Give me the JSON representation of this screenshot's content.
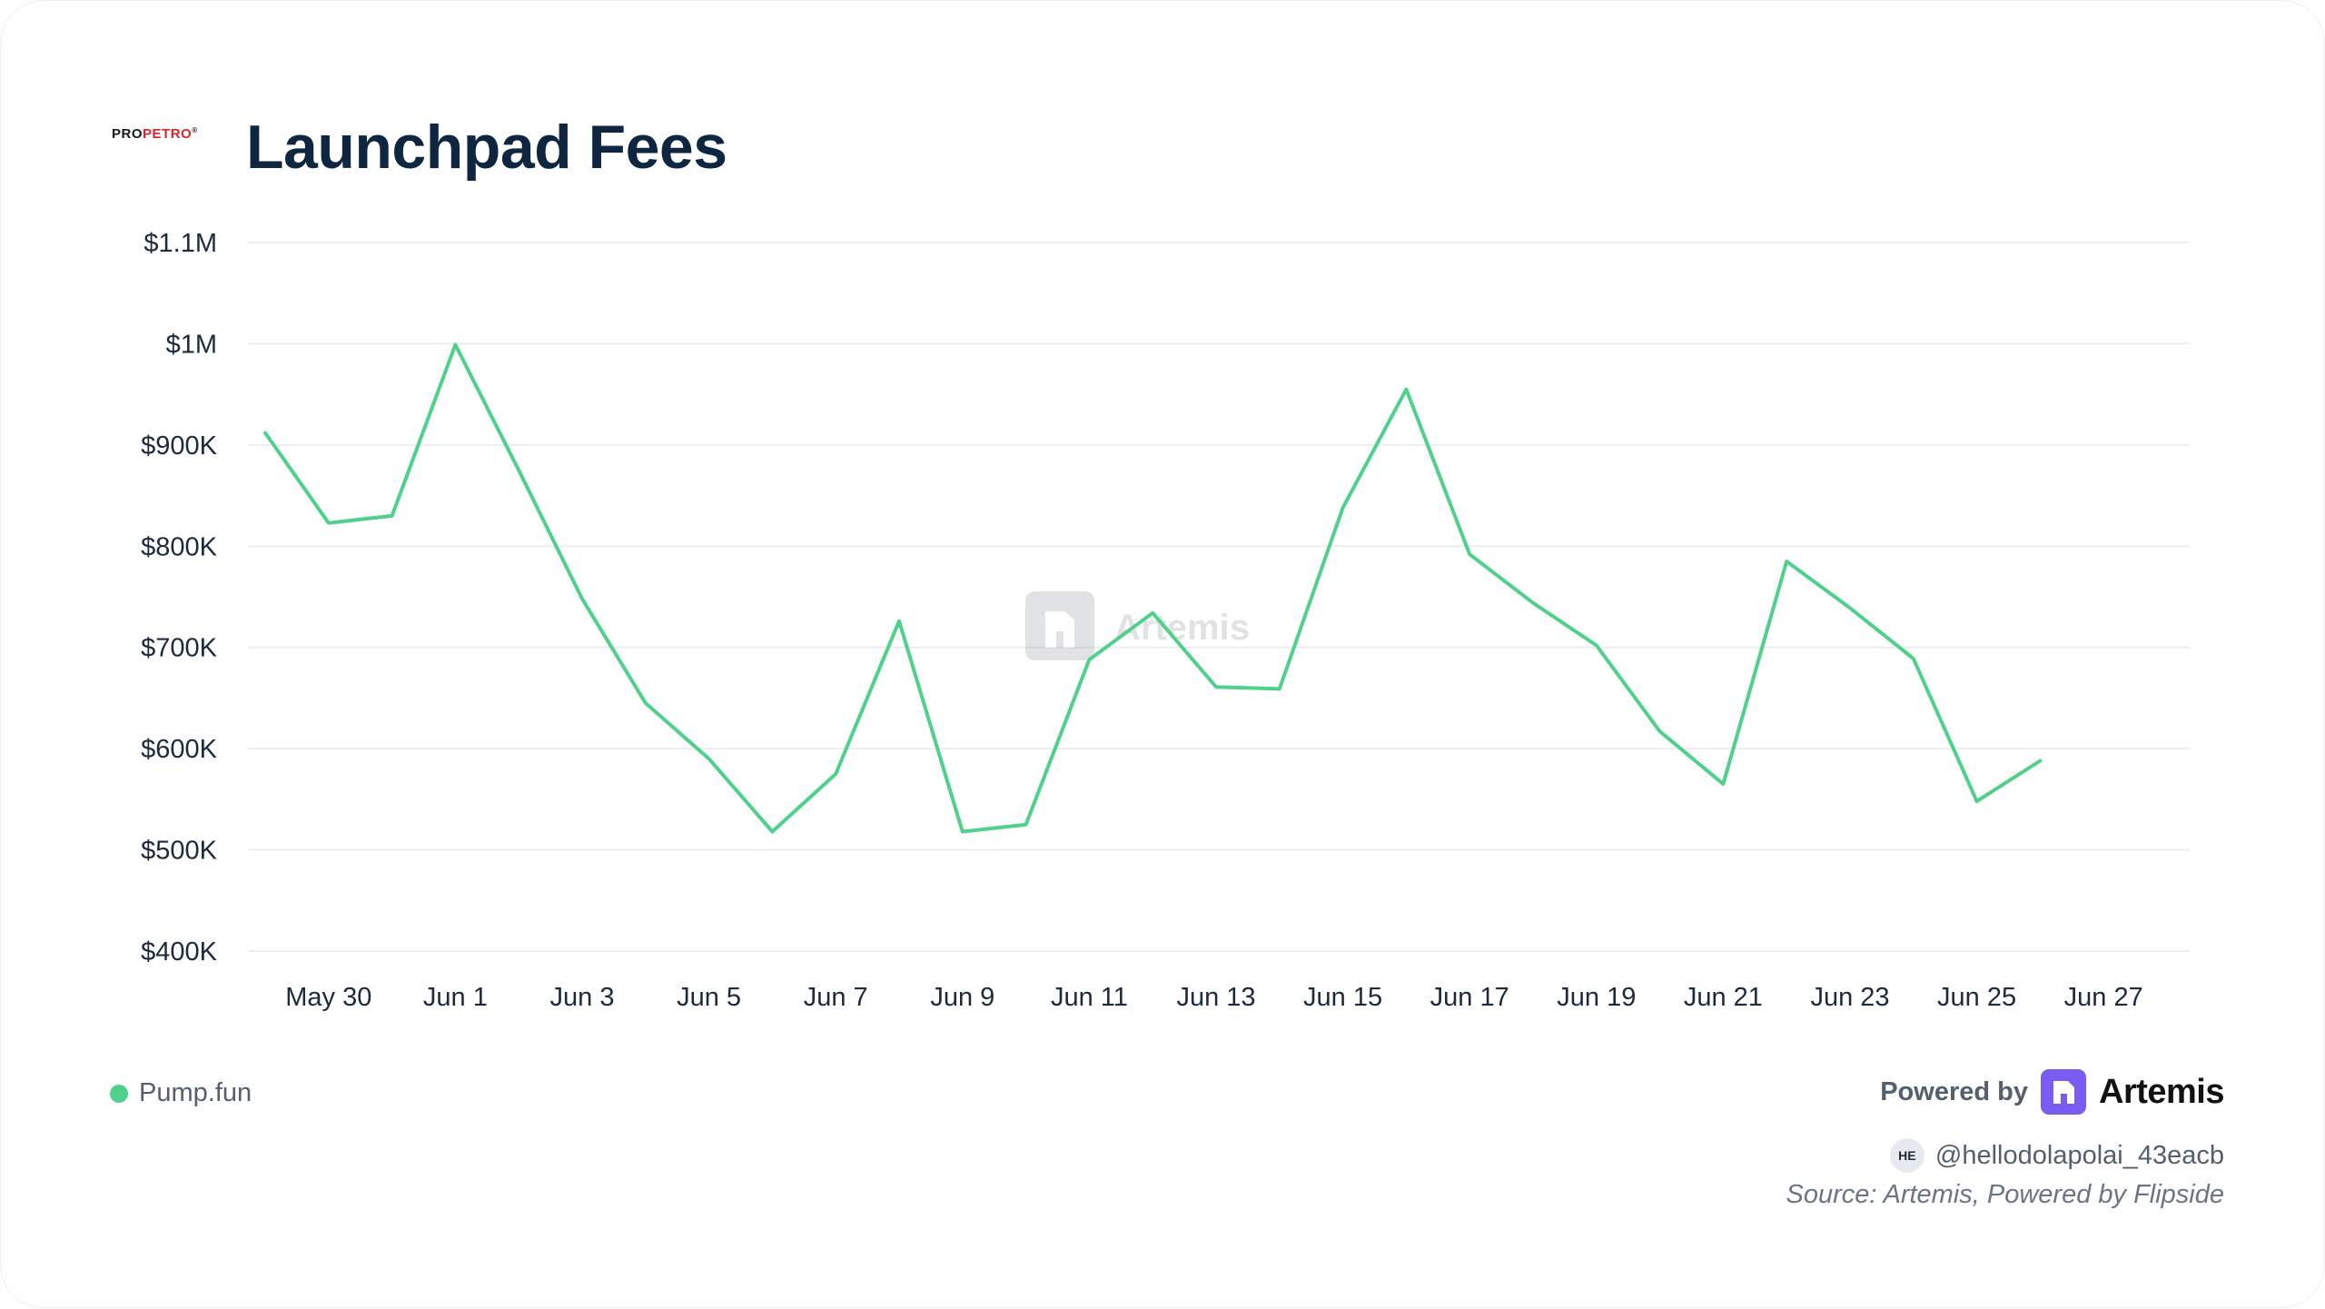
{
  "brand": {
    "logo_left": "PRO",
    "logo_right": "PETRO",
    "logo_mark": "®"
  },
  "header": {
    "title": "Launchpad Fees"
  },
  "chart_data": {
    "type": "line",
    "title": "Launchpad Fees",
    "xlabel": "",
    "ylabel": "",
    "y_ticks": [
      "$400K",
      "$500K",
      "$600K",
      "$700K",
      "$800K",
      "$900K",
      "$1M",
      "$1.1M"
    ],
    "y_tick_values": [
      400000,
      500000,
      600000,
      700000,
      800000,
      900000,
      1000000,
      1100000
    ],
    "ylim": [
      400000,
      1100000
    ],
    "x_ticks": [
      "May 30",
      "Jun 1",
      "Jun 3",
      "Jun 5",
      "Jun 7",
      "Jun 9",
      "Jun 11",
      "Jun 13",
      "Jun 15",
      "Jun 17",
      "Jun 19",
      "Jun 21",
      "Jun 23",
      "Jun 25",
      "Jun 27"
    ],
    "x_tick_dates": [
      "May 30",
      "Jun 1",
      "Jun 3",
      "Jun 5",
      "Jun 7",
      "Jun 9",
      "Jun 11",
      "Jun 13",
      "Jun 15",
      "Jun 17",
      "Jun 19",
      "Jun 21",
      "Jun 23",
      "Jun 25",
      "Jun 27"
    ],
    "x": [
      "May 29",
      "May 30",
      "May 31",
      "Jun 1",
      "Jun 2",
      "Jun 3",
      "Jun 4",
      "Jun 5",
      "Jun 6",
      "Jun 7",
      "Jun 8",
      "Jun 9",
      "Jun 10",
      "Jun 11",
      "Jun 12",
      "Jun 13",
      "Jun 14",
      "Jun 15",
      "Jun 16",
      "Jun 17",
      "Jun 18",
      "Jun 19",
      "Jun 20",
      "Jun 21",
      "Jun 22",
      "Jun 23",
      "Jun 24",
      "Jun 25",
      "Jun 26"
    ],
    "grid": true,
    "legend_position": "bottom-left",
    "series": [
      {
        "name": "Pump.fun",
        "color": "#4fd18b",
        "values": [
          912000,
          823000,
          830000,
          999000,
          875000,
          748000,
          645000,
          590000,
          518000,
          575000,
          726000,
          518000,
          525000,
          688000,
          734000,
          661000,
          659000,
          838000,
          955000,
          792000,
          744000,
          702000,
          617000,
          565000,
          785000,
          739000,
          689000,
          548000,
          588000
        ]
      }
    ]
  },
  "watermark": {
    "text": "Artemis",
    "icon": "artemis-logo-icon"
  },
  "legend": {
    "label": "Pump.fun",
    "color": "#4fd18b"
  },
  "footer": {
    "powered_by": "Powered by",
    "brand": "Artemis",
    "brand_color": "#7b5cf0",
    "avatar_initials": "HE",
    "handle": "@hellodolapolai_43eacb",
    "source": "Source: Artemis, Powered by Flipside"
  }
}
